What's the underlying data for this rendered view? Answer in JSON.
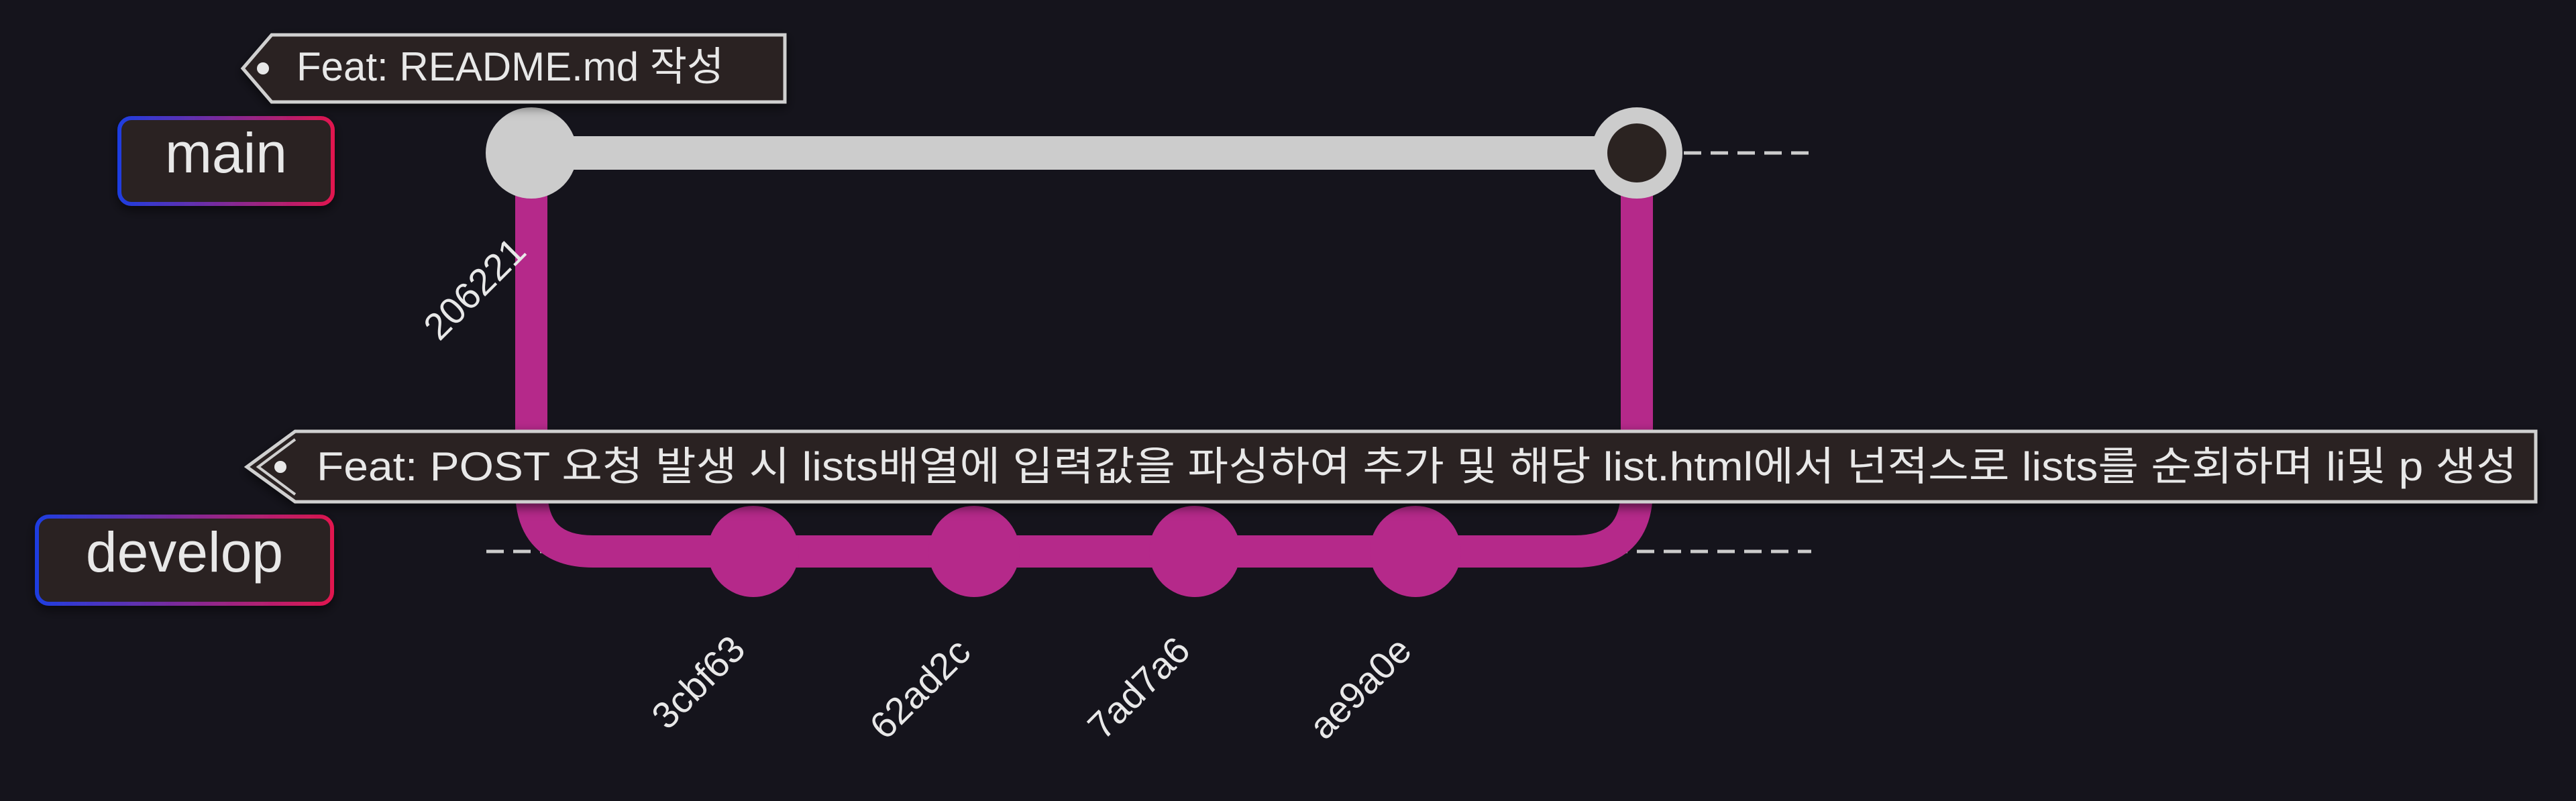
{
  "branches": {
    "main": {
      "label": "main",
      "color": "#cccccc"
    },
    "develop": {
      "label": "develop",
      "color": "#b5298a"
    }
  },
  "commits": {
    "root": {
      "id": "206221",
      "message": "Feat: README.md 작성"
    },
    "develop_commits": [
      {
        "id": "3cbf63"
      },
      {
        "id": "62ad2c"
      },
      {
        "id": "7ad7a6"
      },
      {
        "id": "ae9a0e"
      }
    ],
    "merge": {
      "message": "Feat: POST 요청 발생 시 lists배열에 입력값을 파싱하여 추가 및 해당 list.html에서 넌적스로 lists를 순회하며 li및 p 생성"
    }
  },
  "colors": {
    "background": "#15141c",
    "label_fill": "#2b2321",
    "label_gradient_start": "#1f3de0",
    "label_gradient_end": "#e0174f",
    "tag_border": "#d0d0d0",
    "text": "#e8e8e8"
  }
}
